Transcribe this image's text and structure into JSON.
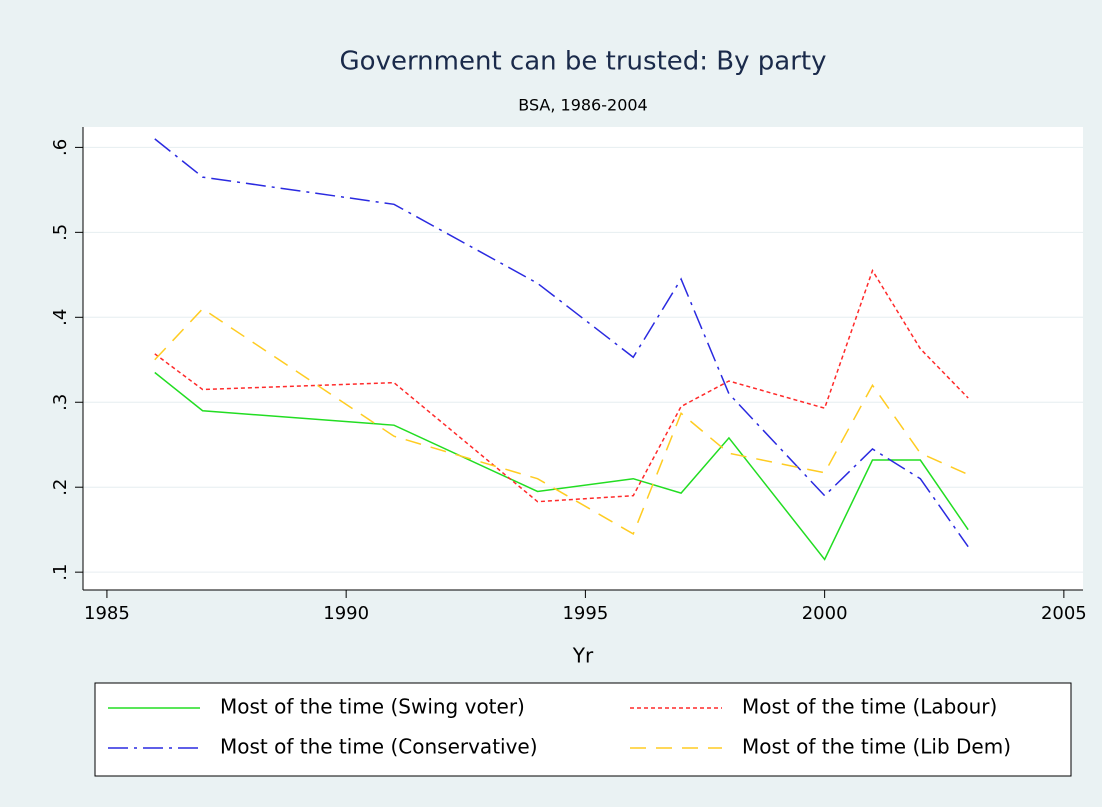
{
  "chart_data": {
    "type": "line",
    "title": "Government can be trusted: By party",
    "subtitle": "BSA, 1986-2004",
    "x_label": "Yr",
    "x": [
      1986,
      1987,
      1991,
      1994,
      1996,
      1997,
      1998,
      2000,
      2001,
      2002,
      2003
    ],
    "series": [
      {
        "name": "Most of the time (Swing voter)",
        "color": "#22dd22",
        "dash": "none",
        "values": [
          0.335,
          0.29,
          0.273,
          0.195,
          0.21,
          0.193,
          0.258,
          0.115,
          0.232,
          0.232,
          0.15
        ]
      },
      {
        "name": "Most of the time (Labour)",
        "color": "#ff2a2a",
        "dash": "4,3",
        "values": [
          0.357,
          0.315,
          0.323,
          0.183,
          0.19,
          0.295,
          0.325,
          0.293,
          0.455,
          0.363,
          0.305
        ]
      },
      {
        "name": "Most of the time (Conservative)",
        "color": "#2a2ae0",
        "dash": "20,6,3,6",
        "values": [
          0.61,
          0.565,
          0.533,
          0.44,
          0.353,
          0.445,
          0.31,
          0.19,
          0.245,
          0.21,
          0.13
        ]
      },
      {
        "name": "Most of the time (Lib Dem)",
        "color": "#ffcc22",
        "dash": "16,10",
        "values": [
          0.35,
          0.41,
          0.26,
          0.21,
          0.145,
          0.287,
          0.24,
          0.217,
          0.32,
          0.24,
          0.215
        ]
      }
    ],
    "xlim": [
      1984.5,
      2005.4
    ],
    "ylim": [
      0.079,
      0.624
    ],
    "xticks": [
      1985,
      1990,
      1995,
      2000,
      2005
    ],
    "yticks": [
      {
        "value": 0.1,
        "label": ".1"
      },
      {
        "value": 0.2,
        "label": ".2"
      },
      {
        "value": 0.3,
        "label": ".3"
      },
      {
        "value": 0.4,
        "label": ".4"
      },
      {
        "value": 0.5,
        "label": ".5"
      },
      {
        "value": 0.6,
        "label": ".6"
      }
    ],
    "grid": true,
    "legend": "bottom"
  }
}
